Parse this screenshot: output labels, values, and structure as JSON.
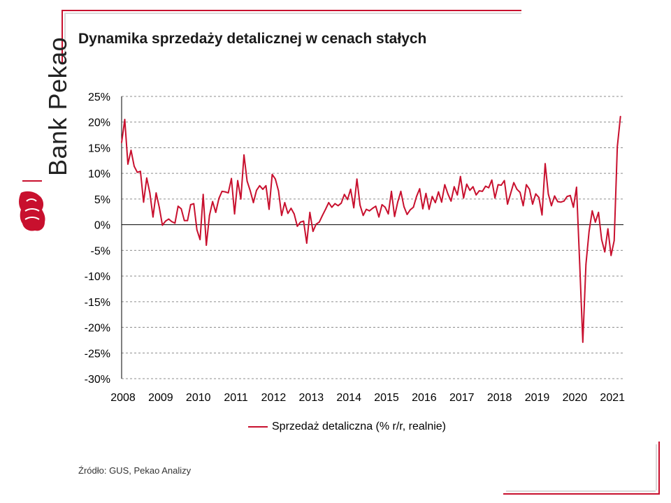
{
  "brand": {
    "name": "Bank Pekao",
    "accent": "#c8102e"
  },
  "title": "Dynamika sprzedaży detalicznej w cenach stałych",
  "source": "Źródło: GUS, Pekao Analizy",
  "chart_data": {
    "type": "line",
    "title": "Dynamika sprzedaży detalicznej w cenach stałych",
    "xlabel": "",
    "ylabel": "",
    "ylim": [
      -30,
      25
    ],
    "ytick_step": 5,
    "ytick_format": "percent",
    "xlim": [
      2008,
      2021.33
    ],
    "x_ticks": [
      2008,
      2009,
      2010,
      2011,
      2012,
      2013,
      2014,
      2015,
      2016,
      2017,
      2018,
      2019,
      2020,
      2021
    ],
    "grid": "horizontal dashed",
    "legend_position": "bottom",
    "color": "#c8102e",
    "series": [
      {
        "name": "Sprzedaż detaliczna (% r/r, realnie)",
        "start": "2008-01",
        "frequency": "monthly",
        "values": [
          16.0,
          20.5,
          11.8,
          14.5,
          11.4,
          10.2,
          10.4,
          4.4,
          9.1,
          6.2,
          1.5,
          6.2,
          3.4,
          -0.1,
          0.7,
          1.1,
          0.6,
          0.3,
          3.6,
          3.1,
          0.8,
          0.8,
          3.9,
          4.1,
          -1.0,
          -2.9,
          5.9,
          -4.0,
          1.8,
          4.5,
          2.4,
          5.1,
          6.5,
          6.4,
          6.2,
          9.0,
          2.1,
          8.6,
          5.0,
          13.6,
          8.5,
          6.6,
          4.3,
          6.7,
          7.6,
          6.9,
          7.6,
          3.0,
          9.8,
          8.9,
          6.6,
          1.8,
          4.3,
          2.2,
          3.2,
          2.1,
          -0.3,
          0.5,
          0.7,
          -3.6,
          2.4,
          -1.3,
          0.1,
          0.5,
          1.8,
          3.0,
          4.3,
          3.4,
          4.1,
          3.7,
          4.2,
          5.9,
          4.9,
          6.9,
          3.3,
          8.9,
          3.8,
          1.8,
          3.0,
          2.7,
          3.2,
          3.6,
          1.5,
          3.9,
          3.4,
          2.1,
          6.5,
          1.6,
          4.4,
          6.5,
          3.5,
          2.0,
          2.9,
          3.4,
          5.5,
          7.0,
          3.1,
          6.1,
          3.0,
          5.5,
          4.3,
          6.4,
          4.4,
          7.8,
          6.0,
          4.6,
          7.4,
          5.8,
          9.4,
          5.2,
          7.9,
          6.7,
          7.4,
          5.8,
          6.6,
          6.5,
          7.5,
          7.2,
          8.7,
          5.2,
          7.8,
          7.7,
          8.6,
          4.0,
          6.1,
          8.2,
          6.9,
          6.3,
          3.7,
          7.8,
          6.9,
          4.0,
          6.0,
          5.3,
          1.9,
          11.9,
          6.0,
          3.7,
          5.6,
          4.5,
          4.4,
          4.6,
          5.5,
          5.7,
          3.4,
          7.3,
          -7.5,
          -22.9,
          -7.7,
          -1.3,
          2.7,
          0.5,
          2.4,
          -2.9,
          -5.3,
          -0.8,
          -6.0,
          -3.1,
          15.2,
          21.1
        ]
      }
    ]
  }
}
